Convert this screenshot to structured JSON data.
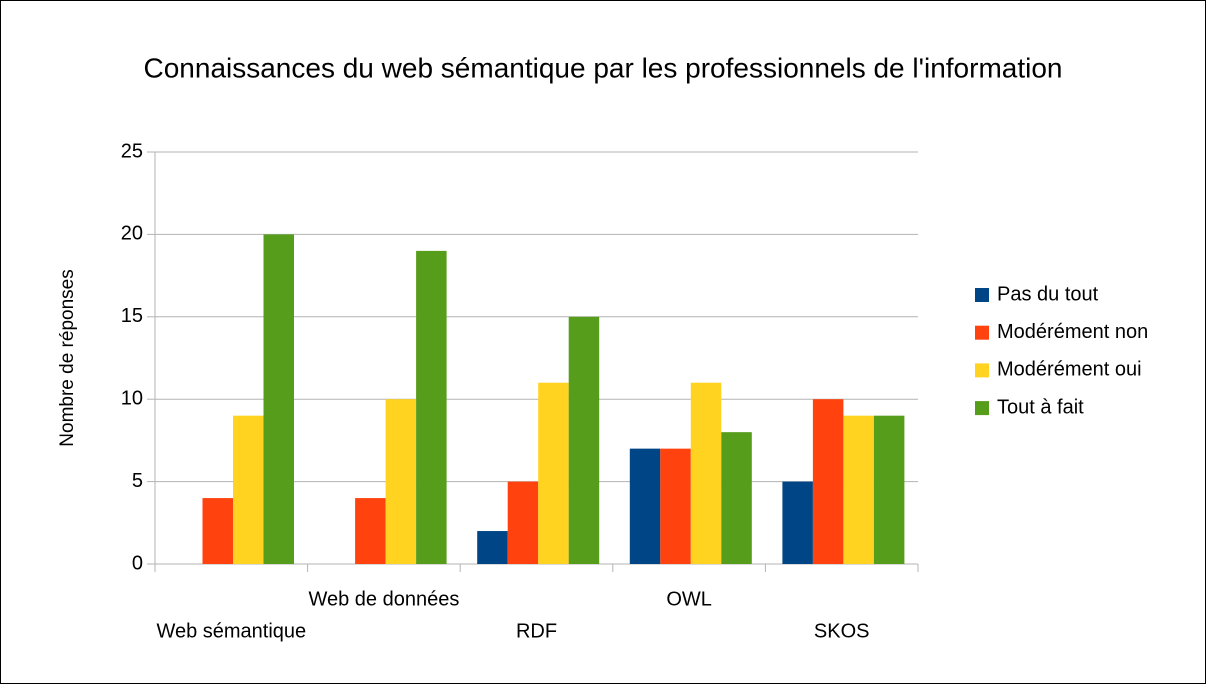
{
  "chart_data": {
    "type": "bar",
    "title": "Connaissances du web sémantique par les  professionnels de l'information",
    "y_label": "Nombre de réponses",
    "categories": [
      "Web sémantique",
      "Web de données",
      "RDF",
      "OWL",
      "SKOS"
    ],
    "series": [
      {
        "name": "Pas du tout",
        "color": "#004586",
        "values": [
          0,
          0,
          2,
          7,
          5
        ]
      },
      {
        "name": "Modérément non",
        "color": "#ff420e",
        "values": [
          4,
          4,
          5,
          7,
          10
        ]
      },
      {
        "name": "Modérément oui",
        "color": "#ffd320",
        "values": [
          9,
          10,
          11,
          11,
          9
        ]
      },
      {
        "name": "Tout à fait",
        "color": "#579d1c",
        "values": [
          20,
          19,
          15,
          8,
          9
        ]
      }
    ],
    "ylim": [
      0,
      25
    ],
    "yticks": [
      0,
      5,
      10,
      15,
      20,
      25
    ],
    "grid": true,
    "legend": "right"
  }
}
